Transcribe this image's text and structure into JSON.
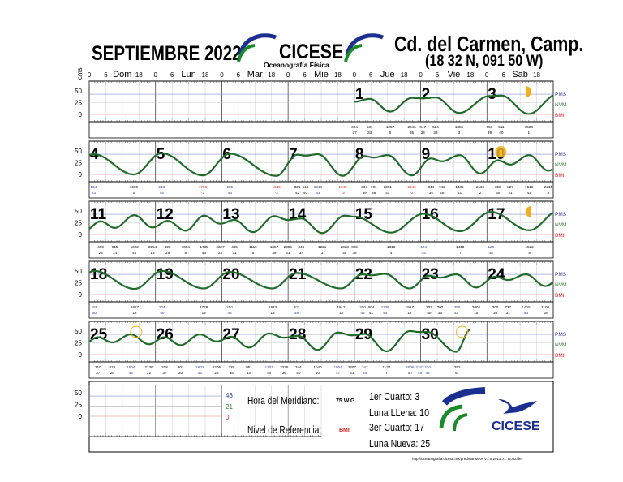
{
  "header": {
    "month_title": "SEPTIEMBRE 2022",
    "institution": "CICESE",
    "department": "Oceanografía Física",
    "station": "Cd. del Carmen, Camp.",
    "coordinates": "(18 32 N, 091 50 W)"
  },
  "footer": {
    "hora_label": "Hora del Meridiano:",
    "hora_value": "75 W.G.",
    "nivel_label": "Nivel de Referencia:",
    "nivel_value": "BMI",
    "moon_1": "1er Cuarto:  3",
    "moon_2": "Luna LLena: 10",
    "moon_3": "3er Cuarto:   17",
    "moon_4": "Luna Nueva: 25",
    "logo_text": "CICESE",
    "credit": "http://oceanografia.cicese.mx/predmar  MAR V1.0 2011 J.I. González",
    "ref_values": {
      "pms": "43",
      "nvm": "21",
      "bmi": "0"
    }
  },
  "colors": {
    "curve": "#1f6b2a",
    "pms": "#2b3a8f",
    "nvm": "#2a7a2a",
    "bmi": "#e02020",
    "moon": "#f2b01e",
    "logo_blue": "#1a2f8f",
    "logo_green": "#1a8a2a"
  },
  "chart_data": {
    "type": "line",
    "ylabel": "cms",
    "ylim": [
      -20,
      60
    ],
    "yticks": [
      "50",
      "25",
      "0"
    ],
    "hour_ticks": [
      "0",
      "6",
      "18"
    ],
    "weekdays": [
      "Dom",
      "Lun",
      "Mar",
      "Mie",
      "Jue",
      "Vie",
      "Sab"
    ],
    "reference_levels": [
      {
        "name": "PMS",
        "value": 43
      },
      {
        "name": "NVM",
        "value": 21
      },
      {
        "name": "BMI",
        "value": 0
      }
    ],
    "first_weekday_of_month": "Jue",
    "days_in_month": 30,
    "extremes": [
      [
        1,
        "004",
        27
      ],
      [
        1,
        "531",
        33
      ],
      [
        1,
        "1257",
        6
      ],
      [
        1,
        "2046",
        35
      ],
      [
        2,
        "047",
        34
      ],
      [
        2,
        "524",
        36
      ],
      [
        2,
        "1355",
        3
      ],
      [
        3,
        "056",
        39
      ],
      [
        3,
        "511",
        40
      ],
      [
        3,
        "1508",
        1
      ],
      [
        4,
        "134",
        43
      ],
      [
        4,
        "1609",
        0
      ],
      [
        5,
        "213",
        45
      ],
      [
        5,
        "1708",
        -2
      ],
      [
        6,
        "255",
        44
      ],
      [
        6,
        "1945",
        -3
      ],
      [
        7,
        "321",
        42
      ],
      [
        7,
        "616",
        40
      ],
      [
        7,
        "1048",
        43
      ],
      [
        7,
        "1949",
        -3
      ],
      [
        8,
        "337",
        39
      ],
      [
        8,
        "701",
        36
      ],
      [
        8,
        "1201",
        41
      ],
      [
        8,
        "2046",
        -2
      ],
      [
        9,
        "344",
        34
      ],
      [
        9,
        "743",
        28
      ],
      [
        9,
        "1405",
        41
      ],
      [
        9,
        "2135",
        2
      ],
      [
        10,
        "358",
        30
      ],
      [
        10,
        "827",
        21
      ],
      [
        10,
        "1516",
        41
      ],
      [
        10,
        "2215",
        8
      ],
      [
        11,
        "409",
        28
      ],
      [
        11,
        "915",
        14
      ],
      [
        11,
        "1622",
        41
      ],
      [
        11,
        "2254",
        15
      ],
      [
        12,
        "423",
        29
      ],
      [
        12,
        "1054",
        8
      ],
      [
        12,
        "1735",
        40
      ],
      [
        12,
        "2327",
        23
      ],
      [
        13,
        "435",
        31
      ],
      [
        13,
        "1119",
        5
      ],
      [
        13,
        "1857",
        39
      ],
      [
        13,
        "2355",
        31
      ],
      [
        14,
        "446",
        34
      ],
      [
        14,
        "1221",
        3
      ],
      [
        14,
        "2028",
        40
      ],
      [
        15,
        "003",
        38
      ],
      [
        15,
        "1318",
        4
      ],
      [
        16,
        "104",
        44
      ],
      [
        16,
        "1418",
        7
      ],
      [
        17,
        "128",
        48
      ],
      [
        17,
        "1522",
        9
      ],
      [
        18,
        "155",
        50
      ],
      [
        18,
        "1627",
        12
      ],
      [
        19,
        "224",
        50
      ],
      [
        19,
        "1728",
        13
      ],
      [
        20,
        "250",
        48
      ],
      [
        20,
        "1823",
        13
      ],
      [
        21,
        "303",
        46
      ],
      [
        21,
        "1912",
        13
      ],
      [
        22,
        "300",
        43
      ],
      [
        22,
        "604",
        41
      ],
      [
        22,
        "1106",
        44
      ],
      [
        22,
        "1957",
        13
      ],
      [
        23,
        "302",
        40
      ],
      [
        23,
        "700",
        36
      ],
      [
        23,
        "1250",
        43
      ],
      [
        23,
        "2004",
        15
      ],
      [
        24,
        "300",
        38
      ],
      [
        24,
        "737",
        31
      ],
      [
        24,
        "1409",
        43
      ],
      [
        24,
        "2106",
        18
      ],
      [
        25,
        "310",
        37
      ],
      [
        25,
        "819",
        26
      ],
      [
        25,
        "1504",
        43
      ],
      [
        25,
        "2136",
        22
      ],
      [
        26,
        "318",
        37
      ],
      [
        26,
        "903",
        20
      ],
      [
        26,
        "1602",
        43
      ],
      [
        26,
        "2206",
        28
      ],
      [
        27,
        "329",
        38
      ],
      [
        27,
        "951",
        15
      ],
      [
        27,
        "1707",
        45
      ],
      [
        27,
        "2235",
        36
      ],
      [
        28,
        "344",
        40
      ],
      [
        28,
        "1040",
        10
      ],
      [
        28,
        "1804",
        47
      ],
      [
        28,
        "2307",
        41
      ],
      [
        29,
        "347",
        44
      ],
      [
        29,
        "1137",
        7
      ],
      [
        29,
        "2006",
        50
      ],
      [
        29,
        "2342",
        48
      ],
      [
        30,
        "230",
        48
      ],
      [
        30,
        "1252",
        6
      ]
    ],
    "curve_end": [
      30,
      "1800",
      53
    ],
    "moon_phases": [
      {
        "phase": "first-quarter",
        "day": 3,
        "hour": 14
      },
      {
        "phase": "full-moon",
        "day": 10,
        "hour": 5
      },
      {
        "phase": "third-quarter",
        "day": 17,
        "hour": 16
      },
      {
        "phase": "new-moon",
        "day": 25,
        "hour": 17
      },
      {
        "phase": "new-moon-outline",
        "day": 30,
        "hour": 15
      }
    ]
  }
}
